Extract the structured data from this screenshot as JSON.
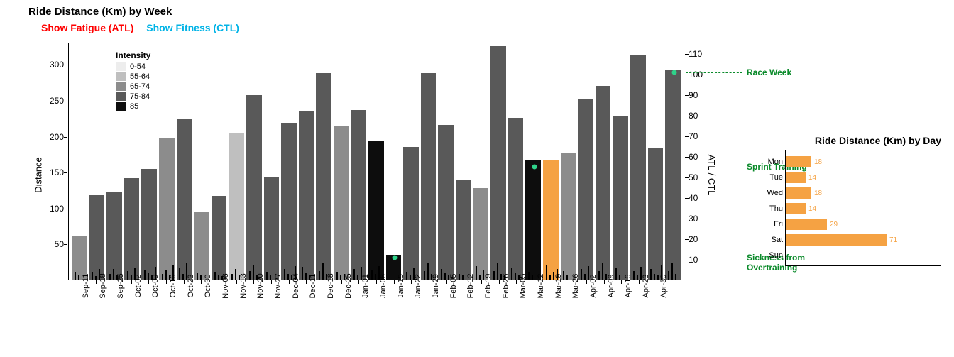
{
  "main_chart": {
    "title": "Ride Distance (Km) by Week",
    "toggle_atl": {
      "label": "Show Fatigue (ATL)",
      "color": "#ff0000"
    },
    "toggle_ctl": {
      "label": "Show Fitness (CTL)",
      "color": "#00b3e6"
    },
    "y_left": {
      "label": "Distance",
      "min": 0,
      "max": 330,
      "ticks": [
        50,
        100,
        150,
        200,
        250,
        300
      ]
    },
    "y_right": {
      "label": "ATL / CTL",
      "min": 0,
      "max": 115,
      "ticks": [
        10,
        20,
        30,
        40,
        50,
        60,
        70,
        80,
        90,
        100,
        110
      ]
    },
    "intensity_legend": {
      "title": "Intensity",
      "bins": [
        {
          "label": "0-54",
          "color": "#ededed"
        },
        {
          "label": "55-64",
          "color": "#bfbfbf"
        },
        {
          "label": "65-74",
          "color": "#8c8c8c"
        },
        {
          "label": "75-84",
          "color": "#595959"
        },
        {
          "label": "85+",
          "color": "#0d0d0d"
        }
      ]
    },
    "highlight_color": "#f5a243",
    "marker_color": "#2fd28a",
    "annotation_color": "#0a8a2a",
    "norides_tick_color": "#000000",
    "norides_tick_height": 10,
    "bars": [
      {
        "x": "Sep-11",
        "value": 62,
        "intensity": "65-74",
        "norides": [
          8,
          4
        ]
      },
      {
        "x": "Sep-18",
        "value": 119,
        "intensity": "75-84",
        "norides": [
          8,
          3,
          12
        ]
      },
      {
        "x": "Sep-25",
        "value": 124,
        "intensity": "75-84",
        "norides": [
          6,
          12,
          4
        ]
      },
      {
        "x": "Oct-02",
        "value": 142,
        "intensity": "75-84",
        "norides": [
          9,
          5,
          13
        ]
      },
      {
        "x": "Oct-09",
        "value": 155,
        "intensity": "75-84",
        "norides": [
          11,
          7,
          4,
          14
        ]
      },
      {
        "x": "Oct-16",
        "value": 199,
        "intensity": "65-74",
        "norides": [
          6,
          10,
          5,
          17
        ]
      },
      {
        "x": "Oct-23",
        "value": 224,
        "intensity": "75-84",
        "norides": [
          13,
          6,
          18
        ]
      },
      {
        "x": "Oct-30",
        "value": 96,
        "intensity": "65-74",
        "norides": [
          7,
          5
        ]
      },
      {
        "x": "Nov-06",
        "value": 118,
        "intensity": "75-84",
        "norides": [
          8,
          4,
          3
        ]
      },
      {
        "x": "Nov-13",
        "value": 206,
        "intensity": "55-64",
        "norides": [
          6,
          12,
          5
        ]
      },
      {
        "x": "Nov-20",
        "value": 258,
        "intensity": "75-84",
        "norides": [
          9,
          16,
          5
        ]
      },
      {
        "x": "Nov-27",
        "value": 143,
        "intensity": "75-84",
        "norides": [
          8,
          5
        ]
      },
      {
        "x": "Dec-04",
        "value": 218,
        "intensity": "75-84",
        "norides": [
          12,
          6,
          4,
          15
        ]
      },
      {
        "x": "Dec-11",
        "value": 235,
        "intensity": "75-84",
        "norides": [
          14,
          7,
          5
        ]
      },
      {
        "x": "Dec-18",
        "value": 289,
        "intensity": "75-84",
        "norides": [
          9,
          18,
          6
        ]
      },
      {
        "x": "Dec-25",
        "value": 214,
        "intensity": "65-74",
        "norides": [
          8,
          4,
          6
        ]
      },
      {
        "x": "Jan-01",
        "value": 237,
        "intensity": "75-84",
        "norides": [
          12,
          5,
          14
        ]
      },
      {
        "x": "Jan-08",
        "value": 195,
        "intensity": "85+",
        "norides": [
          10,
          6,
          15
        ]
      },
      {
        "x": "Jan-15",
        "value": 36,
        "intensity": "85+",
        "norides": [],
        "marker_atl_ctl": 11
      },
      {
        "x": "Jan-22",
        "value": 186,
        "intensity": "75-84",
        "norides": [
          8,
          5,
          13
        ]
      },
      {
        "x": "Jan-29",
        "value": 289,
        "intensity": "75-84",
        "norides": [
          9,
          18,
          6
        ]
      },
      {
        "x": "Feb-05",
        "value": 216,
        "intensity": "75-84",
        "norides": [
          12,
          7,
          5
        ]
      },
      {
        "x": "Feb-12",
        "value": 139,
        "intensity": "75-84",
        "norides": [
          6,
          4
        ]
      },
      {
        "x": "Feb-19",
        "value": 128,
        "intensity": "65-74",
        "norides": [
          15,
          5,
          10
        ]
      },
      {
        "x": "Feb-26",
        "value": 326,
        "intensity": "75-84",
        "norides": [
          9,
          18,
          6,
          4
        ]
      },
      {
        "x": "Mar-05",
        "value": 226,
        "intensity": "75-84",
        "norides": [
          13,
          7,
          5
        ]
      },
      {
        "x": "Mar-12",
        "value": 167,
        "intensity": "85+",
        "norides": [
          8,
          5
        ],
        "marker_atl_ctl": 55
      },
      {
        "x": "Mar-19",
        "value": 167,
        "highlight": true,
        "norides": [
          16,
          4,
          8,
          12
        ]
      },
      {
        "x": "Mar-26",
        "value": 178,
        "intensity": "65-74",
        "norides": [
          9,
          5
        ]
      },
      {
        "x": "Apr-02",
        "value": 253,
        "intensity": "75-84",
        "norides": [
          12,
          6,
          15
        ]
      },
      {
        "x": "Apr-09",
        "value": 271,
        "intensity": "75-84",
        "norides": [
          9,
          18,
          6
        ]
      },
      {
        "x": "Apr-16",
        "value": 228,
        "intensity": "75-84",
        "norides": [
          13,
          5
        ]
      },
      {
        "x": "Apr-23",
        "value": 313,
        "intensity": "75-84",
        "norides": [
          9,
          5,
          14
        ]
      },
      {
        "x": "Apr-30",
        "value": 185,
        "intensity": "75-84",
        "norides": [
          12,
          6,
          4,
          16
        ]
      },
      {
        "x": "",
        "value": 292,
        "intensity": "75-84",
        "norides": [
          9,
          18,
          6
        ],
        "marker_atl_ctl": 101
      }
    ],
    "annotations": [
      {
        "label": "Race Week",
        "atl_ctl_value": 101,
        "lines": 1
      },
      {
        "label": "Sprint Training",
        "atl_ctl_value": 55,
        "lines": 1
      },
      {
        "label": "Sickness from Overtraining",
        "atl_ctl_value": 11,
        "lines": 3
      }
    ]
  },
  "side_chart": {
    "title": "Ride Distance (Km) by Day",
    "bar_color": "#f5a243",
    "value_color": "#f5a243",
    "max_value": 80,
    "days": [
      {
        "label": "Mon",
        "value": 18
      },
      {
        "label": "Tue",
        "value": 14
      },
      {
        "label": "Wed",
        "value": 18
      },
      {
        "label": "Thu",
        "value": 14
      },
      {
        "label": "Fri",
        "value": 29
      },
      {
        "label": "Sat",
        "value": 71
      },
      {
        "label": "Sun",
        "value": 0
      }
    ]
  }
}
